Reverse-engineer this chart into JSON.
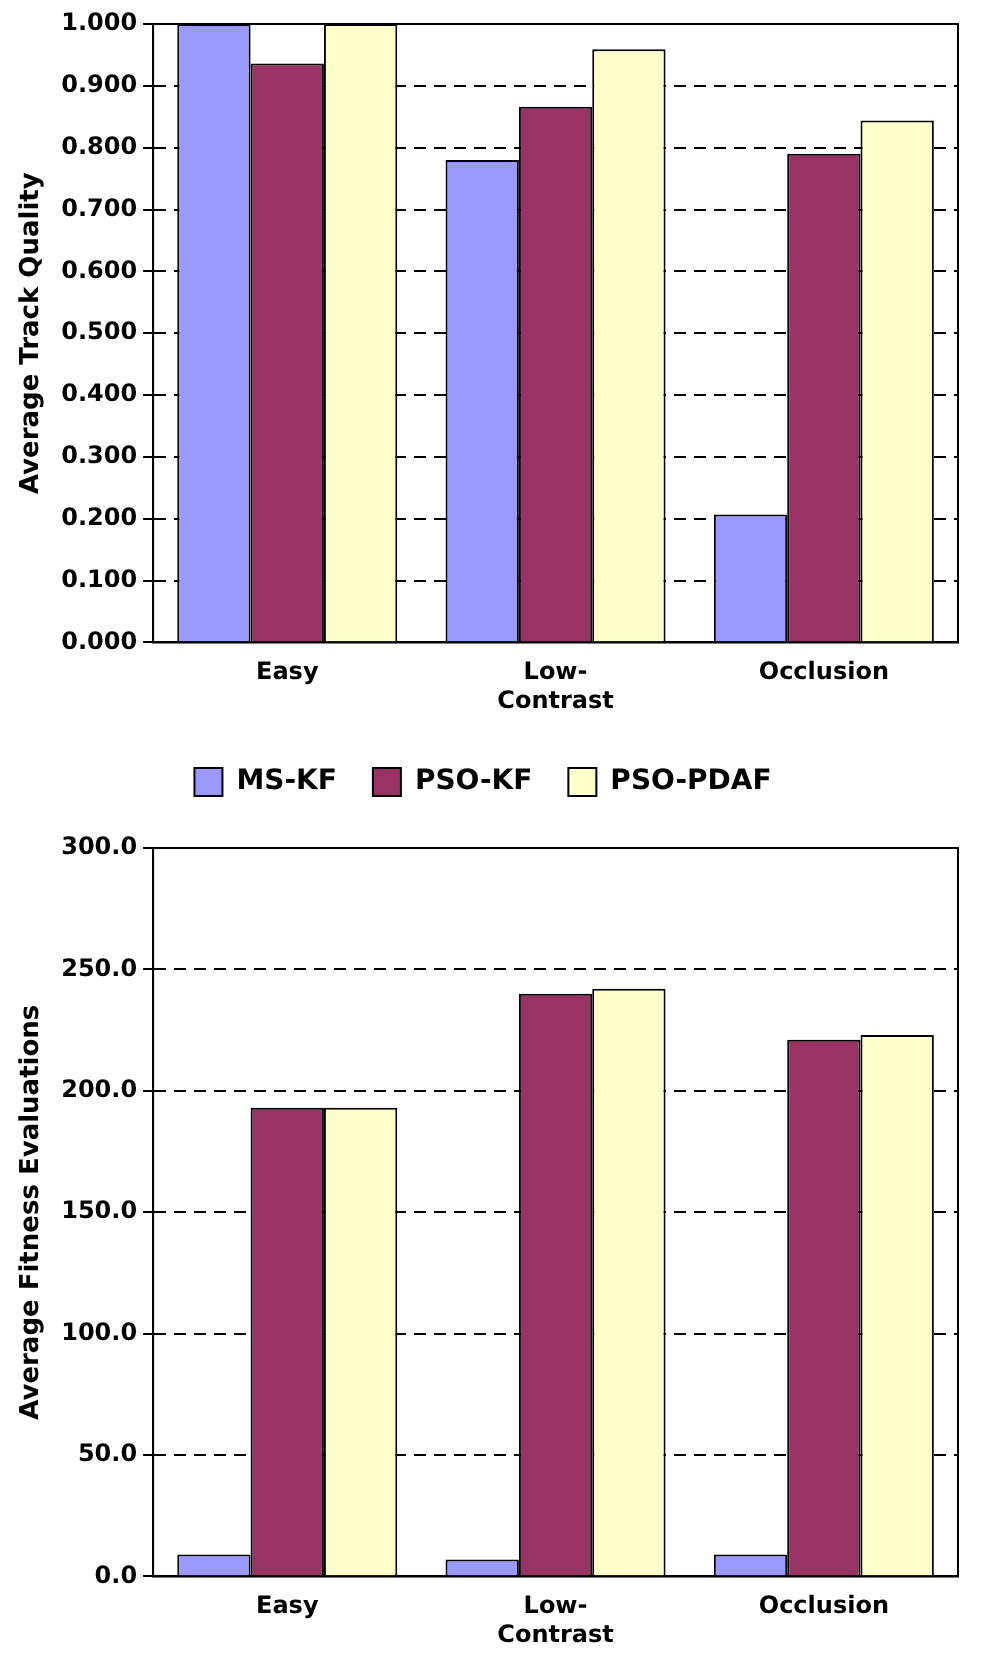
{
  "chart_data": [
    {
      "type": "bar",
      "ylabel": "Average Track Quality",
      "categories": [
        "Easy",
        "Low-Contrast",
        "Occlusion"
      ],
      "series": [
        {
          "name": "MS-KF",
          "color": "#9999ff",
          "values": [
            1.0,
            0.78,
            0.207
          ]
        },
        {
          "name": "PSO-KF",
          "color": "#993366",
          "values": [
            0.936,
            0.866,
            0.79
          ]
        },
        {
          "name": "PSO-PDAF",
          "color": "#ffffcc",
          "values": [
            1.0,
            0.959,
            0.844
          ]
        }
      ],
      "ylim": [
        0,
        1
      ],
      "yticks": [
        {
          "value": 0,
          "label": "0.000"
        },
        {
          "value": 0.1,
          "label": "0.100"
        },
        {
          "value": 0.2,
          "label": "0.200"
        },
        {
          "value": 0.3,
          "label": "0.300"
        },
        {
          "value": 0.4,
          "label": "0.400"
        },
        {
          "value": 0.5,
          "label": "0.500"
        },
        {
          "value": 0.6,
          "label": "0.600"
        },
        {
          "value": 0.7,
          "label": "0.700"
        },
        {
          "value": 0.8,
          "label": "0.800"
        },
        {
          "value": 0.9,
          "label": "0.900"
        },
        {
          "value": 1,
          "label": "1.000"
        }
      ],
      "grid": "y",
      "legend": "bottom"
    },
    {
      "type": "bar",
      "ylabel": "Average Fitness Evaluations",
      "categories": [
        "Easy",
        "Low-Contrast",
        "Occlusion"
      ],
      "series": [
        {
          "color": "#9999ff",
          "values": [
            9,
            7,
            9
          ]
        },
        {
          "color": "#993366",
          "values": [
            193,
            240,
            221
          ]
        },
        {
          "color": "#ffffcc",
          "values": [
            193,
            242,
            223
          ]
        }
      ],
      "ylim": [
        0,
        300
      ],
      "yticks": [
        {
          "value": 0,
          "label": "0.0"
        },
        {
          "value": 50,
          "label": "50.0"
        },
        {
          "value": 100,
          "label": "100.0"
        },
        {
          "value": 150,
          "label": "150.0"
        },
        {
          "value": 200,
          "label": "200.0"
        },
        {
          "value": 250,
          "label": "250.0"
        },
        {
          "value": 300,
          "label": "300.0"
        }
      ],
      "grid": "y"
    }
  ]
}
